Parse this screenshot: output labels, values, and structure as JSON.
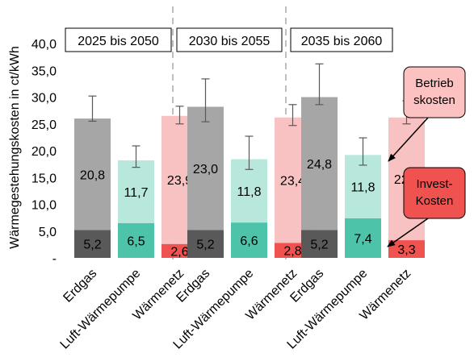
{
  "chart_data": {
    "type": "bar",
    "ylabel": "Wärmegestehungskosten in ct/kWh",
    "ylim": [
      0,
      40
    ],
    "yticks": [
      0,
      5,
      10,
      15,
      20,
      25,
      30,
      35,
      40
    ],
    "ytick_labels": [
      "-",
      "5,0",
      "10,0",
      "15,0",
      "20,0",
      "25,0",
      "30,0",
      "35,0",
      "40,0"
    ],
    "categories": [
      "Erdgas",
      "Luft-Wärmepumpe",
      "Wärmenetz"
    ],
    "groups": [
      {
        "name": "2025 bis 2050",
        "bars": [
          {
            "category": "Erdgas",
            "invest": 5.2,
            "betrieb": 20.8,
            "invest_label": "5,2",
            "betrieb_label": "20,8",
            "err_low": 25.5,
            "err_high": 30.2
          },
          {
            "category": "Luft-Wärmepumpe",
            "invest": 6.5,
            "betrieb": 11.7,
            "invest_label": "6,5",
            "betrieb_label": "11,7",
            "err_low": 16.9,
            "err_high": 20.9
          },
          {
            "category": "Wärmenetz",
            "invest": 2.6,
            "betrieb": 23.9,
            "invest_label": "2,6",
            "betrieb_label": "23,9",
            "err_low": 25.0,
            "err_high": 28.3
          }
        ]
      },
      {
        "name": "2030 bis 2055",
        "bars": [
          {
            "category": "Erdgas",
            "invest": 5.2,
            "betrieb": 23.0,
            "invest_label": "5,2",
            "betrieb_label": "23,0",
            "err_low": 25.4,
            "err_high": 33.4
          },
          {
            "category": "Luft-Wärmepumpe",
            "invest": 6.6,
            "betrieb": 11.8,
            "invest_label": "6,6",
            "betrieb_label": "11,8",
            "err_low": 16.5,
            "err_high": 22.7
          },
          {
            "category": "Wärmenetz",
            "invest": 2.8,
            "betrieb": 23.4,
            "invest_label": "2,8",
            "betrieb_label": "23,4",
            "err_low": 24.7,
            "err_high": 28.6
          }
        ]
      },
      {
        "name": "2035 bis 2060",
        "bars": [
          {
            "category": "Erdgas",
            "invest": 5.2,
            "betrieb": 24.8,
            "invest_label": "5,2",
            "betrieb_label": "24,8",
            "err_low": 28.6,
            "err_high": 36.2
          },
          {
            "category": "Luft-Wärmepumpe",
            "invest": 7.4,
            "betrieb": 11.8,
            "invest_label": "7,4",
            "betrieb_label": "11,8",
            "err_low": 17.3,
            "err_high": 22.4
          },
          {
            "category": "Wärmenetz",
            "invest": 3.3,
            "betrieb": 22.9,
            "invest_label": "3,3",
            "betrieb_label": "22,9",
            "err_low": 25.0,
            "err_high": 29.3
          }
        ]
      }
    ],
    "colors": {
      "Erdgas": {
        "invest": "#595959",
        "betrieb": "#a6a6a6"
      },
      "Luft-Wärmepumpe": {
        "invest": "#4dc4aa",
        "betrieb": "#b8e8dc"
      },
      "Wärmenetz": {
        "invest": "#f0524f",
        "betrieb": "#f9c2c2"
      }
    },
    "annotations": [
      {
        "text_lines": [
          "Betrieb",
          "skosten"
        ],
        "fill": "#fcc2c2"
      },
      {
        "text_lines": [
          "Invest-",
          "Kosten"
        ],
        "fill": "#f0524f"
      }
    ],
    "grid": false,
    "legend": "none"
  }
}
